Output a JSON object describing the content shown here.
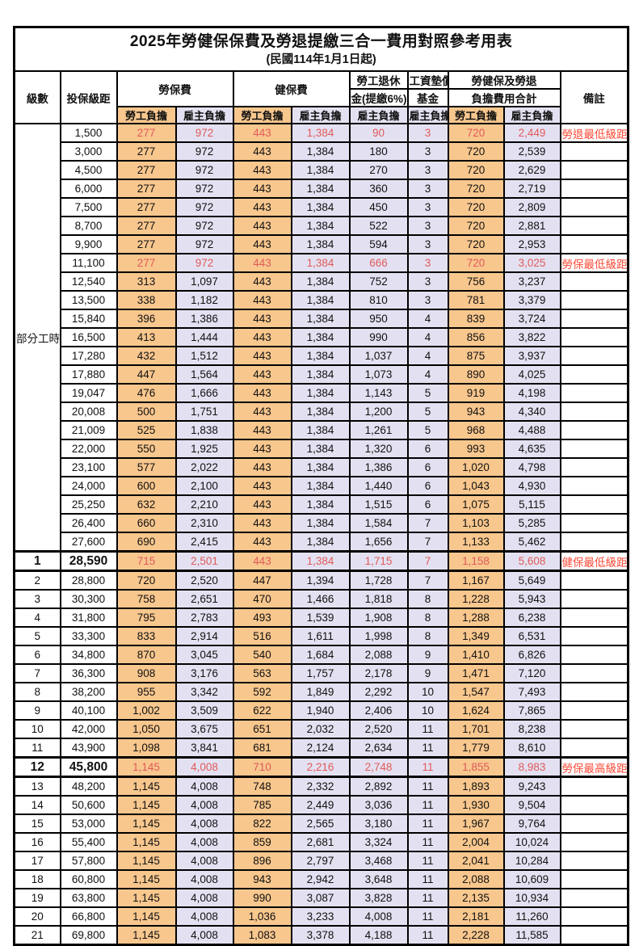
{
  "title": "2025年勞健保保費及勞退提繳三合一費用對照參考用表",
  "subtitle": "(民國114年1月1日起)",
  "colors": {
    "employee_bg": "#f8c78e",
    "employer_bg": "#e3e1f1",
    "value_red": "#e05a5a",
    "remark_red": "#fa4734",
    "border": "#000000"
  },
  "header": {
    "level": "級數",
    "bracket": "投保級距",
    "labor_insurance": "勞保費",
    "health_insurance": "健保費",
    "pension_line1": "勞工退休",
    "pension_line2": "金(提繳6%)",
    "wage_fund_line1": "工資墊償",
    "wage_fund_line2": "基金",
    "total_line1": "勞健保及勞退",
    "total_line2": "負擔費用合計",
    "remark": "備註",
    "employee": "勞工負擔",
    "employer": "雇主負擔"
  },
  "part_time_label": "部分工時",
  "part_time_rowspan": 23,
  "row_schema": [
    "level",
    "bracket",
    "labor_emp",
    "labor_er",
    "health_emp",
    "health_er",
    "pension_er",
    "wagefund_er",
    "total_emp",
    "total_er",
    "remark",
    "flags(r=red,b=bold,t=thickborder)"
  ],
  "rows": [
    [
      "",
      "1,500",
      "277",
      "972",
      "443",
      "1,384",
      "90",
      "3",
      "720",
      "2,449",
      "勞退最低級距",
      "r"
    ],
    [
      "",
      "3,000",
      "277",
      "972",
      "443",
      "1,384",
      "180",
      "3",
      "720",
      "2,539",
      "",
      ""
    ],
    [
      "",
      "4,500",
      "277",
      "972",
      "443",
      "1,384",
      "270",
      "3",
      "720",
      "2,629",
      "",
      ""
    ],
    [
      "",
      "6,000",
      "277",
      "972",
      "443",
      "1,384",
      "360",
      "3",
      "720",
      "2,719",
      "",
      ""
    ],
    [
      "",
      "7,500",
      "277",
      "972",
      "443",
      "1,384",
      "450",
      "3",
      "720",
      "2,809",
      "",
      ""
    ],
    [
      "",
      "8,700",
      "277",
      "972",
      "443",
      "1,384",
      "522",
      "3",
      "720",
      "2,881",
      "",
      ""
    ],
    [
      "",
      "9,900",
      "277",
      "972",
      "443",
      "1,384",
      "594",
      "3",
      "720",
      "2,953",
      "",
      ""
    ],
    [
      "",
      "11,100",
      "277",
      "972",
      "443",
      "1,384",
      "666",
      "3",
      "720",
      "3,025",
      "勞保最低級距",
      "r"
    ],
    [
      "",
      "12,540",
      "313",
      "1,097",
      "443",
      "1,384",
      "752",
      "3",
      "756",
      "3,237",
      "",
      ""
    ],
    [
      "",
      "13,500",
      "338",
      "1,182",
      "443",
      "1,384",
      "810",
      "3",
      "781",
      "3,379",
      "",
      ""
    ],
    [
      "",
      "15,840",
      "396",
      "1,386",
      "443",
      "1,384",
      "950",
      "4",
      "839",
      "3,724",
      "",
      ""
    ],
    [
      "",
      "16,500",
      "413",
      "1,444",
      "443",
      "1,384",
      "990",
      "4",
      "856",
      "3,822",
      "",
      ""
    ],
    [
      "",
      "17,280",
      "432",
      "1,512",
      "443",
      "1,384",
      "1,037",
      "4",
      "875",
      "3,937",
      "",
      ""
    ],
    [
      "",
      "17,880",
      "447",
      "1,564",
      "443",
      "1,384",
      "1,073",
      "4",
      "890",
      "4,025",
      "",
      ""
    ],
    [
      "",
      "19,047",
      "476",
      "1,666",
      "443",
      "1,384",
      "1,143",
      "5",
      "919",
      "4,198",
      "",
      ""
    ],
    [
      "",
      "20,008",
      "500",
      "1,751",
      "443",
      "1,384",
      "1,200",
      "5",
      "943",
      "4,340",
      "",
      ""
    ],
    [
      "",
      "21,009",
      "525",
      "1,838",
      "443",
      "1,384",
      "1,261",
      "5",
      "968",
      "4,488",
      "",
      ""
    ],
    [
      "",
      "22,000",
      "550",
      "1,925",
      "443",
      "1,384",
      "1,320",
      "6",
      "993",
      "4,635",
      "",
      ""
    ],
    [
      "",
      "23,100",
      "577",
      "2,022",
      "443",
      "1,384",
      "1,386",
      "6",
      "1,020",
      "4,798",
      "",
      ""
    ],
    [
      "",
      "24,000",
      "600",
      "2,100",
      "443",
      "1,384",
      "1,440",
      "6",
      "1,043",
      "4,930",
      "",
      ""
    ],
    [
      "",
      "25,250",
      "632",
      "2,210",
      "443",
      "1,384",
      "1,515",
      "6",
      "1,075",
      "5,115",
      "",
      ""
    ],
    [
      "",
      "26,400",
      "660",
      "2,310",
      "443",
      "1,384",
      "1,584",
      "7",
      "1,103",
      "5,285",
      "",
      ""
    ],
    [
      "",
      "27,600",
      "690",
      "2,415",
      "443",
      "1,384",
      "1,656",
      "7",
      "1,133",
      "5,462",
      "",
      ""
    ],
    [
      "1",
      "28,590",
      "715",
      "2,501",
      "443",
      "1,384",
      "1,715",
      "7",
      "1,158",
      "5,608",
      "健保最低級距",
      "rbt"
    ],
    [
      "2",
      "28,800",
      "720",
      "2,520",
      "447",
      "1,394",
      "1,728",
      "7",
      "1,167",
      "5,649",
      "",
      ""
    ],
    [
      "3",
      "30,300",
      "758",
      "2,651",
      "470",
      "1,466",
      "1,818",
      "8",
      "1,228",
      "5,943",
      "",
      ""
    ],
    [
      "4",
      "31,800",
      "795",
      "2,783",
      "493",
      "1,539",
      "1,908",
      "8",
      "1,288",
      "6,238",
      "",
      ""
    ],
    [
      "5",
      "33,300",
      "833",
      "2,914",
      "516",
      "1,611",
      "1,998",
      "8",
      "1,349",
      "6,531",
      "",
      ""
    ],
    [
      "6",
      "34,800",
      "870",
      "3,045",
      "540",
      "1,684",
      "2,088",
      "9",
      "1,410",
      "6,826",
      "",
      ""
    ],
    [
      "7",
      "36,300",
      "908",
      "3,176",
      "563",
      "1,757",
      "2,178",
      "9",
      "1,471",
      "7,120",
      "",
      ""
    ],
    [
      "8",
      "38,200",
      "955",
      "3,342",
      "592",
      "1,849",
      "2,292",
      "10",
      "1,547",
      "7,493",
      "",
      ""
    ],
    [
      "9",
      "40,100",
      "1,002",
      "3,509",
      "622",
      "1,940",
      "2,406",
      "10",
      "1,624",
      "7,865",
      "",
      ""
    ],
    [
      "10",
      "42,000",
      "1,050",
      "3,675",
      "651",
      "2,032",
      "2,520",
      "11",
      "1,701",
      "8,238",
      "",
      ""
    ],
    [
      "11",
      "43,900",
      "1,098",
      "3,841",
      "681",
      "2,124",
      "2,634",
      "11",
      "1,779",
      "8,610",
      "",
      ""
    ],
    [
      "12",
      "45,800",
      "1,145",
      "4,008",
      "710",
      "2,216",
      "2,748",
      "11",
      "1,855",
      "8,983",
      "勞保最高級距",
      "rbt"
    ],
    [
      "13",
      "48,200",
      "1,145",
      "4,008",
      "748",
      "2,332",
      "2,892",
      "11",
      "1,893",
      "9,243",
      "",
      ""
    ],
    [
      "14",
      "50,600",
      "1,145",
      "4,008",
      "785",
      "2,449",
      "3,036",
      "11",
      "1,930",
      "9,504",
      "",
      ""
    ],
    [
      "15",
      "53,000",
      "1,145",
      "4,008",
      "822",
      "2,565",
      "3,180",
      "11",
      "1,967",
      "9,764",
      "",
      ""
    ],
    [
      "16",
      "55,400",
      "1,145",
      "4,008",
      "859",
      "2,681",
      "3,324",
      "11",
      "2,004",
      "10,024",
      "",
      ""
    ],
    [
      "17",
      "57,800",
      "1,145",
      "4,008",
      "896",
      "2,797",
      "3,468",
      "11",
      "2,041",
      "10,284",
      "",
      ""
    ],
    [
      "18",
      "60,800",
      "1,145",
      "4,008",
      "943",
      "2,942",
      "3,648",
      "11",
      "2,088",
      "10,609",
      "",
      ""
    ],
    [
      "19",
      "63,800",
      "1,145",
      "4,008",
      "990",
      "3,087",
      "3,828",
      "11",
      "2,135",
      "10,934",
      "",
      ""
    ],
    [
      "20",
      "66,800",
      "1,145",
      "4,008",
      "1,036",
      "3,233",
      "4,008",
      "11",
      "2,181",
      "11,260",
      "",
      ""
    ],
    [
      "21",
      "69,800",
      "1,145",
      "4,008",
      "1,083",
      "3,378",
      "4,188",
      "11",
      "2,228",
      "11,585",
      "",
      ""
    ]
  ]
}
